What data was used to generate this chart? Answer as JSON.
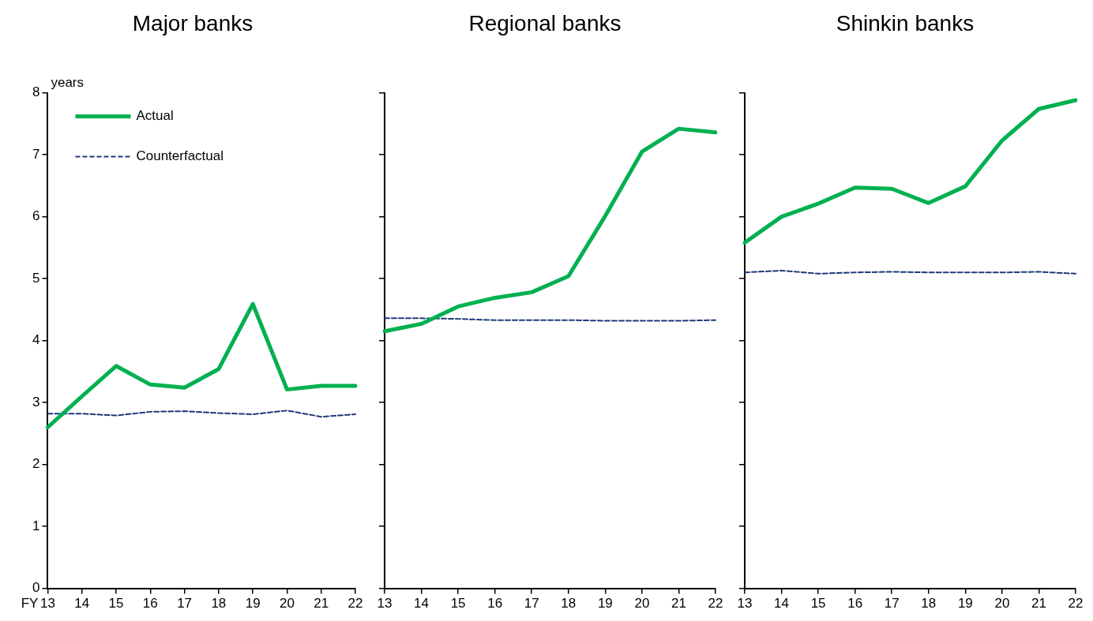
{
  "chart_data": [
    {
      "type": "line",
      "title": "Major banks",
      "ylabel": "years",
      "xlabel": "FY",
      "categories": [
        "13",
        "14",
        "15",
        "16",
        "17",
        "18",
        "19",
        "20",
        "21",
        "22"
      ],
      "ylim": [
        0,
        8
      ],
      "yticks": [
        0,
        1,
        2,
        3,
        4,
        5,
        6,
        7,
        8
      ],
      "legend": "top left",
      "marker": "none",
      "series": [
        {
          "name": "Actual",
          "color": "#00b050",
          "line_style": "solid",
          "values": [
            2.6,
            3.1,
            3.59,
            3.29,
            3.24,
            3.54,
            4.59,
            3.21,
            3.27,
            3.27
          ]
        },
        {
          "name": "Counterfactual",
          "color": "#1f3a7a",
          "line_style": "dashed",
          "values": [
            2.82,
            2.82,
            2.79,
            2.85,
            2.86,
            2.83,
            2.81,
            2.87,
            2.77,
            2.81
          ]
        }
      ]
    },
    {
      "type": "line",
      "title": "Regional banks",
      "categories": [
        "13",
        "14",
        "15",
        "16",
        "17",
        "18",
        "19",
        "20",
        "21",
        "22"
      ],
      "ylim": [
        0,
        8
      ],
      "yticks": [
        0,
        1,
        2,
        3,
        4,
        5,
        6,
        7,
        8
      ],
      "tick_labels": "x",
      "marker": "none",
      "series": [
        {
          "color": "#00b050",
          "line_style": "solid",
          "values": [
            4.15,
            4.27,
            4.55,
            4.69,
            4.78,
            5.04,
            6.01,
            7.05,
            7.42,
            7.36
          ]
        },
        {
          "color": "#1f3a7a",
          "line_style": "dashed",
          "values": [
            4.36,
            4.36,
            4.35,
            4.33,
            4.33,
            4.33,
            4.32,
            4.32,
            4.32,
            4.33
          ]
        }
      ]
    },
    {
      "type": "line",
      "title": "Shinkin banks",
      "categories": [
        "13",
        "14",
        "15",
        "16",
        "17",
        "18",
        "19",
        "20",
        "21",
        "22"
      ],
      "ylim": [
        0,
        8
      ],
      "yticks": [
        0,
        1,
        2,
        3,
        4,
        5,
        6,
        7,
        8
      ],
      "tick_labels": "x",
      "marker": "none",
      "series": [
        {
          "color": "#00b050",
          "line_style": "solid",
          "values": [
            5.58,
            6.0,
            6.21,
            6.47,
            6.45,
            6.22,
            6.49,
            7.23,
            7.74,
            7.88
          ]
        },
        {
          "color": "#1f3a7a",
          "line_style": "dashed",
          "values": [
            5.1,
            5.13,
            5.08,
            5.1,
            5.11,
            5.1,
            5.1,
            5.1,
            5.11,
            5.08
          ]
        }
      ]
    }
  ]
}
